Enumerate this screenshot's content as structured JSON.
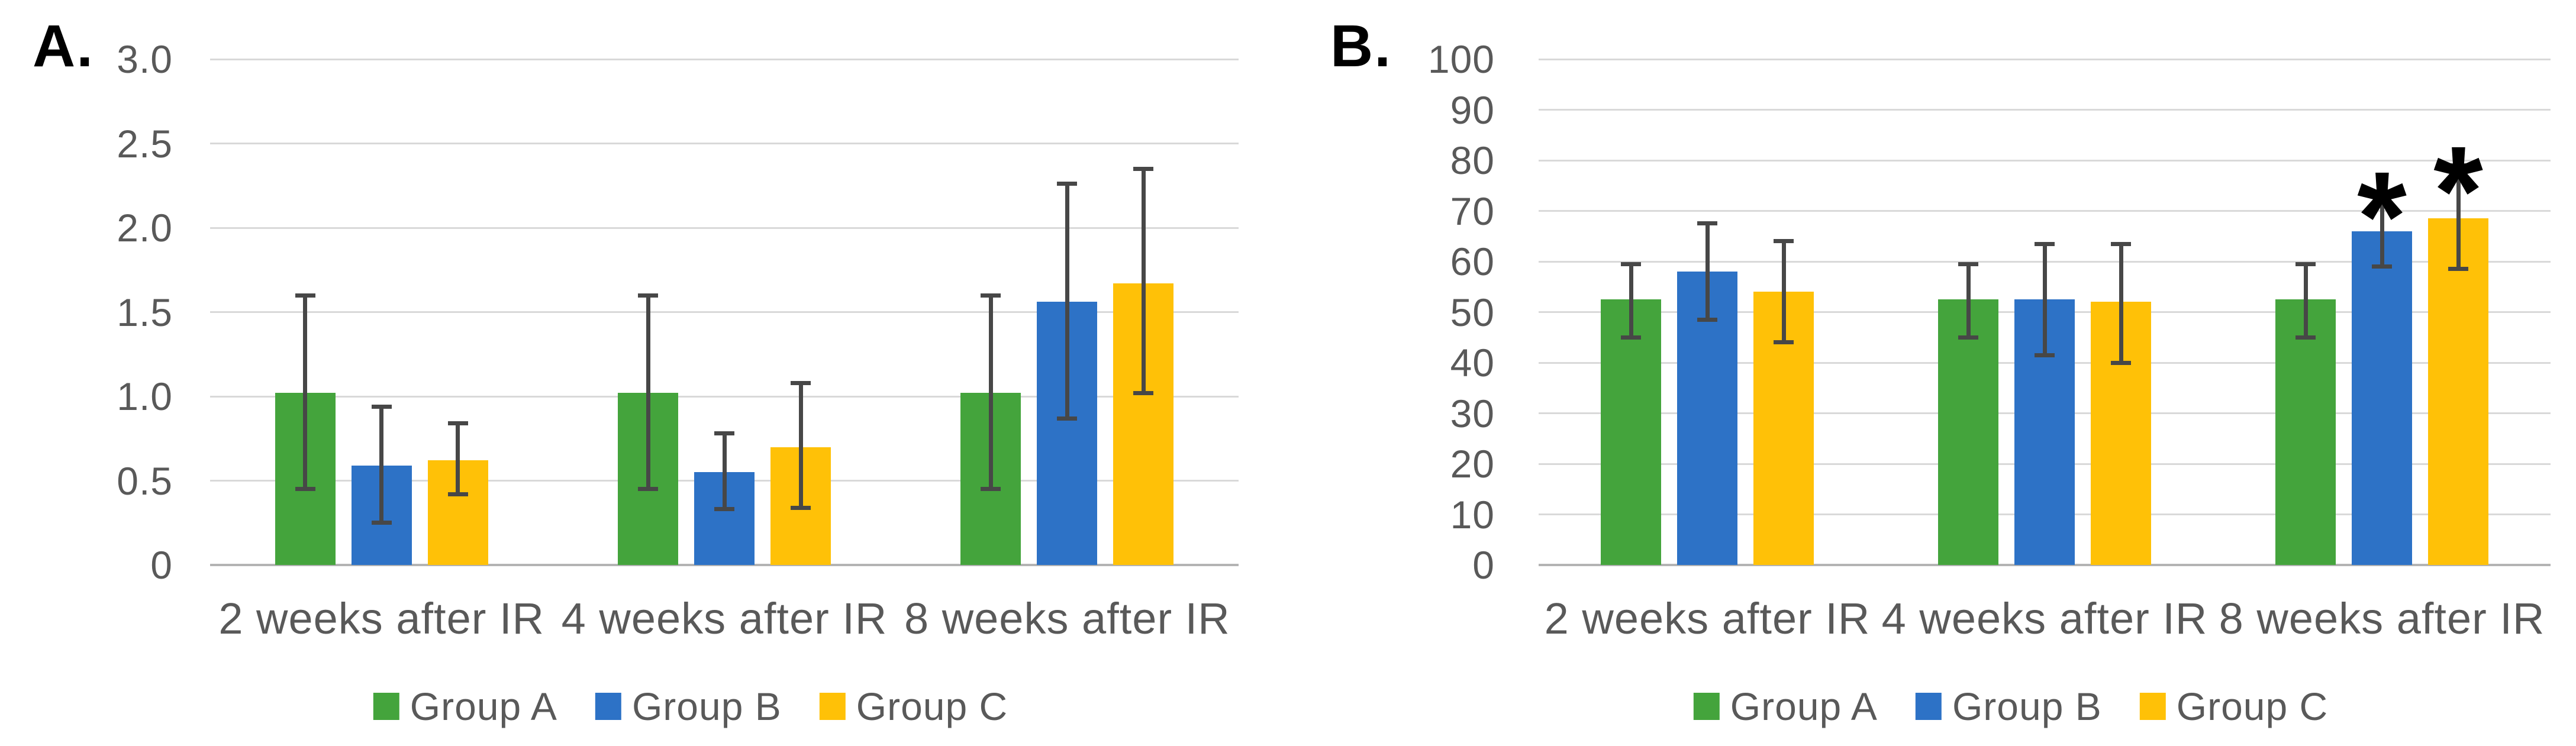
{
  "style": {
    "background": "#ffffff",
    "text_color": "#595959",
    "grid_color": "#d9d9d9",
    "axis_line_color": "#b3b3b3",
    "error_bar_color": "#474747",
    "annotation_color": "#000000",
    "group_a_color": "#44a43c",
    "group_b_color": "#2d72c6",
    "group_c_color": "#ffc107"
  },
  "chart_data": [
    {
      "type": "bar",
      "panel_label": "A.",
      "title": "",
      "xlabel": "",
      "ylabel": "",
      "grid": true,
      "error_bars": true,
      "legend_position": "bottom",
      "ylim": [
        0,
        3
      ],
      "yticks": [
        "3.0",
        "2.5",
        "2.0",
        "1.5",
        "1.0",
        "0.5",
        "0"
      ],
      "ytick_values": [
        3,
        2.5,
        2,
        1.5,
        1,
        0.5,
        0
      ],
      "categories": [
        "2 weeks after IR",
        "4 weeks after IR",
        "8 weeks after IR"
      ],
      "series": [
        {
          "name": "Group A",
          "color": "#44a43c",
          "values": [
            1.02,
            1.02,
            1.02
          ],
          "err_low": [
            0.45,
            0.45,
            0.45
          ],
          "err_high": [
            1.6,
            1.6,
            1.6
          ]
        },
        {
          "name": "Group B",
          "color": "#2d72c6",
          "values": [
            0.59,
            0.55,
            1.56
          ],
          "err_low": [
            0.25,
            0.33,
            0.87
          ],
          "err_high": [
            0.94,
            0.78,
            2.26
          ]
        },
        {
          "name": "Group C",
          "color": "#ffc107",
          "values": [
            0.62,
            0.7,
            1.67
          ],
          "err_low": [
            0.42,
            0.34,
            1.02
          ],
          "err_high": [
            0.84,
            1.08,
            2.35
          ]
        }
      ],
      "annotations": []
    },
    {
      "type": "bar",
      "panel_label": "B.",
      "title": "",
      "xlabel": "",
      "ylabel": "",
      "grid": true,
      "error_bars": true,
      "legend_position": "bottom",
      "ylim": [
        0,
        100
      ],
      "yticks": [
        "100",
        "90",
        "80",
        "70",
        "60",
        "50",
        "40",
        "30",
        "20",
        "10",
        "0"
      ],
      "ytick_values": [
        100,
        90,
        80,
        70,
        60,
        50,
        40,
        30,
        20,
        10,
        0
      ],
      "categories": [
        "2 weeks after IR",
        "4 weeks after IR",
        "8 weeks after IR"
      ],
      "series": [
        {
          "name": "Group A",
          "color": "#44a43c",
          "values": [
            52.5,
            52.5,
            52.5
          ],
          "err_low": [
            45,
            45,
            45
          ],
          "err_high": [
            59.5,
            59.5,
            59.5
          ]
        },
        {
          "name": "Group B",
          "color": "#2d72c6",
          "values": [
            58,
            52.5,
            66
          ],
          "err_low": [
            48.5,
            41.5,
            59
          ],
          "err_high": [
            67.5,
            63.5,
            73.5
          ]
        },
        {
          "name": "Group C",
          "color": "#ffc107",
          "values": [
            54,
            52,
            68.5
          ],
          "err_low": [
            44,
            40,
            58.5
          ],
          "err_high": [
            64,
            63.5,
            79
          ]
        }
      ],
      "annotations": [
        {
          "text": "*",
          "category_index": 2,
          "series_index": 1,
          "y": 82
        },
        {
          "text": "*",
          "category_index": 2,
          "series_index": 2,
          "y": 87
        }
      ]
    }
  ]
}
